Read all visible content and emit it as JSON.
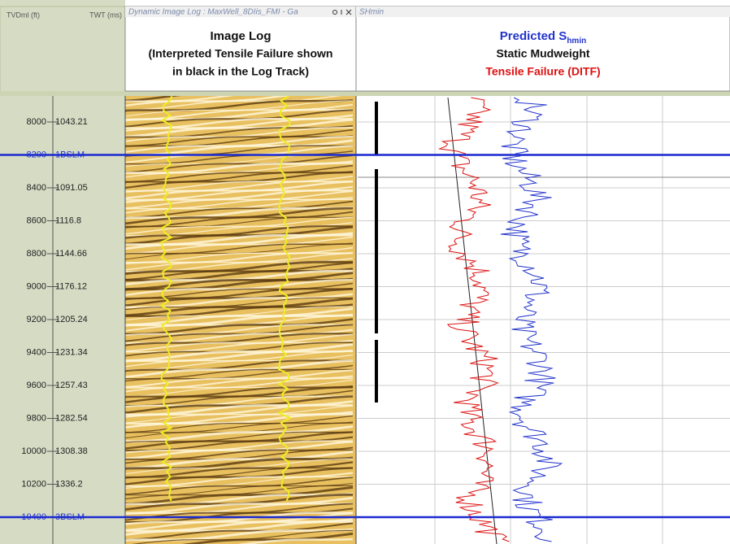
{
  "header": {
    "tvd_label": "TVDml (ft)",
    "twt_label": "TWT (ms)",
    "image_track_title": "Dynamic Image Log : MaxWell_8DIis_FMI - Ga",
    "right_track_title": "SHmin"
  },
  "image_log_title": {
    "line1": "Image Log",
    "line2": "(Interpreted Tensile Failure shown",
    "line3": "in black in the Log Track)"
  },
  "right_legend": {
    "predicted": "Predicted S",
    "predicted_sub": "hmin",
    "mudweight": "Static Mudweight",
    "failure": "Tensile Failure (DITF)"
  },
  "depths": [
    {
      "tvd": 8000,
      "twt": "1043.21"
    },
    {
      "tvd": 8200,
      "twt": "1BSLM"
    },
    {
      "tvd": 8400,
      "twt": "1091.05"
    },
    {
      "tvd": 8600,
      "twt": "1116.8"
    },
    {
      "tvd": 8800,
      "twt": "1144.66"
    },
    {
      "tvd": 9000,
      "twt": "1176.12"
    },
    {
      "tvd": 9200,
      "twt": "1205.24"
    },
    {
      "tvd": 9400,
      "twt": "1231.34"
    },
    {
      "tvd": 9600,
      "twt": "1257.43"
    },
    {
      "tvd": 9800,
      "twt": "1282.54"
    },
    {
      "tvd": 10000,
      "twt": "1308.38"
    },
    {
      "tvd": 10200,
      "twt": "1336.2"
    },
    {
      "tvd": 10400,
      "twt": "3BSLM"
    }
  ]
}
